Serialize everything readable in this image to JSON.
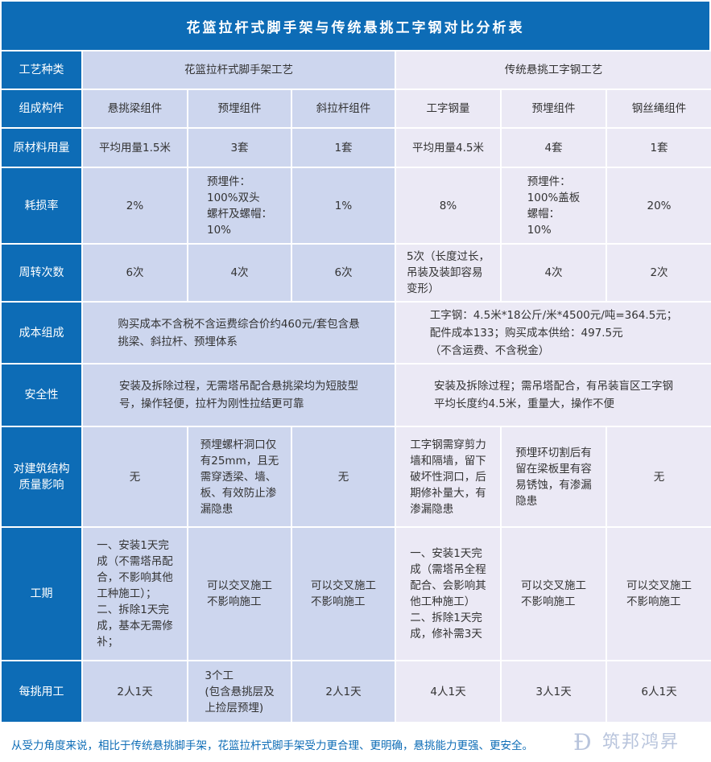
{
  "title": "花篮拉杆式脚手架与传统悬挑工字钢对比分析表",
  "colors": {
    "header_blue": "#0d6cb6",
    "group_a": "#cdd6ee",
    "group_b": "#ebe9f5"
  },
  "watermark": {
    "logo": "D",
    "brand": "筑邦鸿昇"
  },
  "rows": [
    {
      "label": "工艺种类",
      "a": "花篮拉杆式脚手架工艺",
      "b": "传统悬挑工字钢工艺"
    },
    {
      "label": "组成构件",
      "cells": [
        "悬挑梁组件",
        "预埋组件",
        "斜拉杆组件",
        "工字钢量",
        "预埋组件",
        "钢丝绳组件"
      ]
    },
    {
      "label": "原材料用量",
      "cells": [
        "平均用量1.5米",
        "3套",
        "1套",
        "平均用量4.5米",
        "4套",
        "1套"
      ]
    },
    {
      "label": "耗损率",
      "cells": [
        "2%",
        "预埋件：\n100%双头\n螺杆及螺帽：\n10%",
        "1%",
        "8%",
        "预埋件：\n100%盖板\n螺帽：\n10%",
        "20%"
      ]
    },
    {
      "label": "周转次数",
      "cells": [
        "6次",
        "4次",
        "6次",
        "5次（长度过长，\n吊装及装卸容易\n变形）",
        "4次",
        "2次"
      ]
    },
    {
      "label": "成本组成",
      "a": "购买成本不含税不含运费综合价约460元/套包含悬\n挑梁、斜拉杆、预埋体系",
      "b": "工字钢：4.5米*18公斤/米*4500元/吨=364.5元；\n配件成本133；购买成本供给：497.5元\n（不含运费、不含税金）"
    },
    {
      "label": "安全性",
      "a": "安装及拆除过程，无需塔吊配合悬挑梁均为短肢型\n号，操作轻便，拉杆为刚性拉结更可靠",
      "b": "安装及拆除过程；需吊塔配合，有吊装盲区工字钢\n平均长度约4.5米，重量大，操作不便"
    },
    {
      "label": "对建筑结构\n质量影响",
      "cells": [
        "无",
        "预埋螺杆洞口仅\n有25mm，且无\n需穿透梁、墙、\n板、有效防止渗\n漏隐患",
        "无",
        "工字钢需穿剪力\n墙和隔墙，留下\n破坏性洞口，后\n期修补量大，有\n渗漏隐患",
        "预埋环切割后有\n留在梁板里有容\n易锈蚀，有渗漏\n隐患",
        "无"
      ]
    },
    {
      "label": "工期",
      "cells": [
        "一、安装1天完\n成（不需塔吊配\n合，不影响其他\n工种施工）；\n二、拆除1天完\n成，基本无需修\n补；",
        "可以交叉施工\n不影响施工",
        "可以交叉施工\n不影响施工",
        "一、安装1天完\n成（需塔吊全程\n配合、会影响其\n他工种施工）\n二、拆除1天完\n成，修补需3天",
        "可以交叉施工\n不影响施工",
        "可以交叉施工\n不影响施工"
      ]
    },
    {
      "label": "每挑用工",
      "cells": [
        "2人1天",
        "3个工\n(包含悬挑层及\n上捡层预埋)",
        "2人1天",
        "4人1天",
        "3人1天",
        "6人1天"
      ]
    }
  ],
  "footer": "从受力角度来说，相比于传统悬挑脚手架，花篮拉杆式脚手架受力更合理、更明确，悬挑能力更强、更安全。"
}
